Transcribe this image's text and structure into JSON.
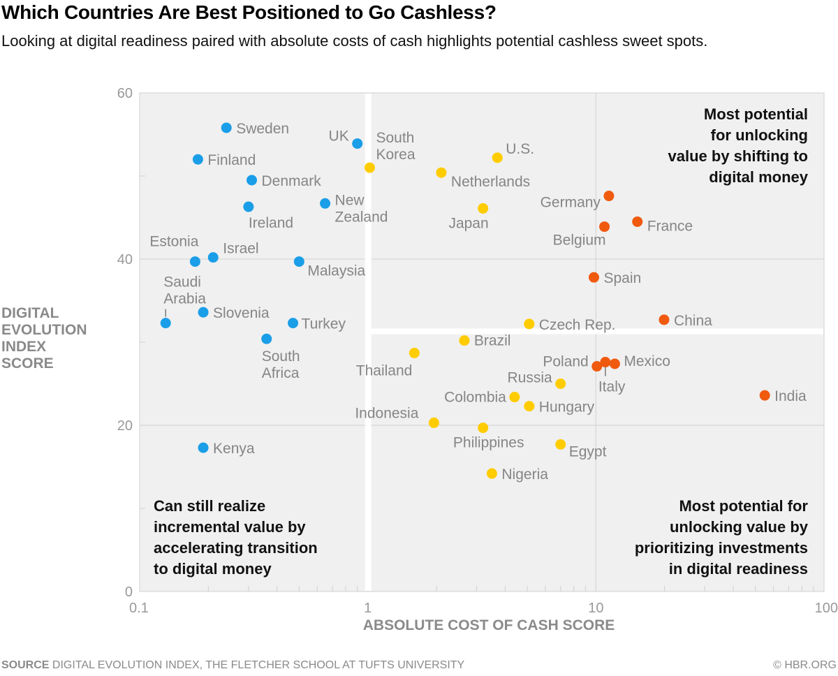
{
  "header": {
    "title": "Which Countries Are Best Positioned to Go Cashless?",
    "subtitle": "Looking at digital readiness paired with absolute costs of cash highlights potential cashless sweet spots."
  },
  "footer": {
    "source_label": "SOURCE",
    "source_text": "DIGITAL EVOLUTION INDEX, THE FLETCHER SCHOOL AT TUFTS UNIVERSITY",
    "copyright": "© HBR.ORG"
  },
  "colors": {
    "blue": "#1a9ee8",
    "yellow": "#ffcc00",
    "orange": "#f05a0f",
    "plot_bg": "#f0f0f0",
    "label": "#858585"
  },
  "chart_data": {
    "type": "scatter",
    "title": "Which Countries Are Best Positioned to Go Cashless?",
    "xlabel": "ABSOLUTE COST OF CASH SCORE",
    "ylabel": "DIGITAL EVOLUTION INDEX SCORE",
    "xscale": "log",
    "xlim": [
      0.1,
      100
    ],
    "ylim": [
      0,
      60
    ],
    "xticks": [
      "0.1",
      "1",
      "10",
      "100"
    ],
    "yticks": [
      "0",
      "20",
      "40",
      "60"
    ],
    "grid": true,
    "quadrant_labels": {
      "top_right": "Most potential\nfor unlocking\nvalue by shifting to\ndigital money",
      "bottom_left": "Can still realize\nincremental value by\naccelerating transition\nto digital money",
      "bottom_right": "Most potential for\nunlocking value by\nprioritizing investments\nin digital readiness"
    },
    "points": [
      {
        "name": "Sweden",
        "x": 0.24,
        "y": 55.8,
        "group": "blue"
      },
      {
        "name": "Finland",
        "x": 0.18,
        "y": 52.0,
        "group": "blue"
      },
      {
        "name": "Denmark",
        "x": 0.31,
        "y": 49.5,
        "group": "blue"
      },
      {
        "name": "Ireland",
        "x": 0.3,
        "y": 46.3,
        "group": "blue"
      },
      {
        "name": "New Zealand",
        "x": 0.65,
        "y": 46.7,
        "group": "blue"
      },
      {
        "name": "UK",
        "x": 0.9,
        "y": 53.9,
        "group": "blue"
      },
      {
        "name": "Estonia",
        "x": 0.175,
        "y": 39.7,
        "group": "blue"
      },
      {
        "name": "Israel",
        "x": 0.21,
        "y": 40.2,
        "group": "blue"
      },
      {
        "name": "Malaysia",
        "x": 0.5,
        "y": 39.7,
        "group": "blue"
      },
      {
        "name": "Saudi Arabia",
        "x": 0.13,
        "y": 32.3,
        "group": "blue"
      },
      {
        "name": "Slovenia",
        "x": 0.19,
        "y": 33.6,
        "group": "blue"
      },
      {
        "name": "Turkey",
        "x": 0.47,
        "y": 32.3,
        "group": "blue"
      },
      {
        "name": "South Africa",
        "x": 0.36,
        "y": 30.4,
        "group": "blue"
      },
      {
        "name": "Kenya",
        "x": 0.19,
        "y": 17.3,
        "group": "blue"
      },
      {
        "name": "South Korea",
        "x": 1.02,
        "y": 51.0,
        "group": "yellow"
      },
      {
        "name": "Netherlands",
        "x": 2.1,
        "y": 50.4,
        "group": "yellow"
      },
      {
        "name": "U.S.",
        "x": 3.7,
        "y": 52.2,
        "group": "yellow"
      },
      {
        "name": "Japan",
        "x": 3.2,
        "y": 46.1,
        "group": "yellow"
      },
      {
        "name": "Czech Rep.",
        "x": 5.1,
        "y": 32.2,
        "group": "yellow"
      },
      {
        "name": "Brazil",
        "x": 2.65,
        "y": 30.2,
        "group": "yellow"
      },
      {
        "name": "Thailand",
        "x": 1.6,
        "y": 28.7,
        "group": "yellow"
      },
      {
        "name": "Russia",
        "x": 7.0,
        "y": 25.0,
        "group": "yellow"
      },
      {
        "name": "Colombia",
        "x": 4.4,
        "y": 23.4,
        "group": "yellow"
      },
      {
        "name": "Hungary",
        "x": 5.1,
        "y": 22.3,
        "group": "yellow"
      },
      {
        "name": "Indonesia",
        "x": 1.95,
        "y": 20.3,
        "group": "yellow"
      },
      {
        "name": "Philippines",
        "x": 3.2,
        "y": 19.7,
        "group": "yellow"
      },
      {
        "name": "Egypt",
        "x": 7.0,
        "y": 17.7,
        "group": "yellow"
      },
      {
        "name": "Nigeria",
        "x": 3.5,
        "y": 14.2,
        "group": "yellow"
      },
      {
        "name": "Germany",
        "x": 11.4,
        "y": 47.6,
        "group": "orange"
      },
      {
        "name": "Belgium",
        "x": 10.9,
        "y": 43.9,
        "group": "orange"
      },
      {
        "name": "France",
        "x": 15.2,
        "y": 44.5,
        "group": "orange"
      },
      {
        "name": "Spain",
        "x": 9.8,
        "y": 37.8,
        "group": "orange"
      },
      {
        "name": "China",
        "x": 19.9,
        "y": 32.7,
        "group": "orange"
      },
      {
        "name": "Poland",
        "x": 10.1,
        "y": 27.1,
        "group": "orange"
      },
      {
        "name": "Italy",
        "x": 11.0,
        "y": 27.6,
        "group": "orange"
      },
      {
        "name": "Mexico",
        "x": 12.1,
        "y": 27.4,
        "group": "orange"
      },
      {
        "name": "India",
        "x": 55,
        "y": 23.6,
        "group": "orange"
      }
    ]
  }
}
